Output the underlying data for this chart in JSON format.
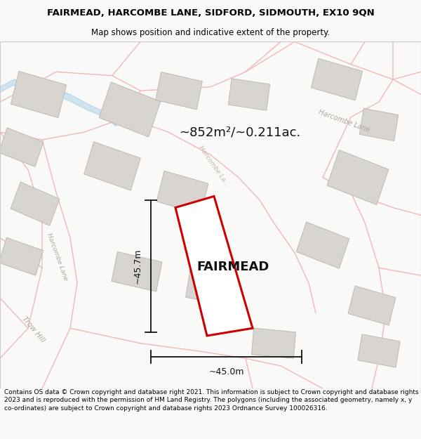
{
  "title_line1": "FAIRMEAD, HARCOMBE LANE, SIDFORD, SIDMOUTH, EX10 9QN",
  "title_line2": "Map shows position and indicative extent of the property.",
  "property_label": "FAIRMEAD",
  "area_text": "~852m²/~0.211ac.",
  "dim_vertical": "~45.7m",
  "dim_horizontal": "~45.0m",
  "copyright_text": "Contains OS data © Crown copyright and database right 2021. This information is subject to Crown copyright and database rights 2023 and is reproduced with the permission of HM Land Registry. The polygons (including the associated geometry, namely x, y co-ordinates) are subject to Crown copyright and database rights 2023 Ordnance Survey 100026316.",
  "bg_color": "#f9f9f7",
  "map_bg": "#ffffff",
  "road_color": "#f0b8b8",
  "road_lw": 1.0,
  "building_edge": "#c0b8b0",
  "building_fill": "#d8d5d0",
  "stream_color": "#b8d4e8",
  "stream_fill": "#d0e4f0",
  "property_color": "#cc0000",
  "property_fill": "#ffffff",
  "dim_color": "#111111",
  "street_label_color": "#b0a898",
  "title_fontsize": 9.5,
  "subtitle_fontsize": 8.5,
  "label_fontsize": 13,
  "area_fontsize": 13,
  "dim_fontsize": 9,
  "copyright_fontsize": 6.5
}
